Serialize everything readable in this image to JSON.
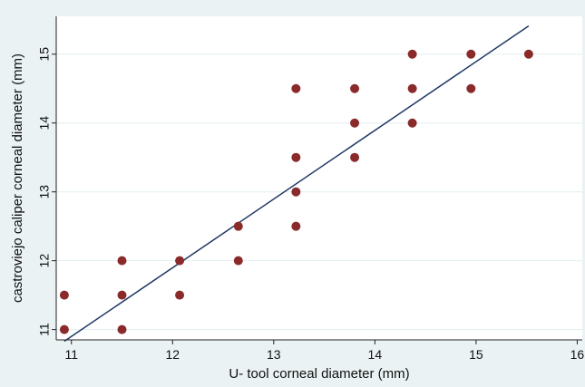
{
  "chart_data": {
    "type": "scatter",
    "title": "",
    "xlabel": "U- tool corneal diameter (mm)",
    "ylabel": "castroviejo caliper corneal diameter (mm)",
    "xlim": [
      10.85,
      16.05
    ],
    "ylim": [
      10.85,
      15.55
    ],
    "xticks": [
      11,
      12,
      13,
      14,
      15,
      16
    ],
    "yticks": [
      11,
      12,
      13,
      14,
      15
    ],
    "grid": "horizontal",
    "legend": "none",
    "marker_color": "#8b2a2a",
    "line_color": "#1f3864",
    "plot_background": "#ffffff",
    "outer_background": "#eaf2f3",
    "grid_color": "#e3eef0",
    "points": [
      {
        "x": 10.93,
        "y": 11.5
      },
      {
        "x": 10.93,
        "y": 11.0
      },
      {
        "x": 11.5,
        "y": 12.0
      },
      {
        "x": 11.5,
        "y": 11.5
      },
      {
        "x": 11.5,
        "y": 11.0
      },
      {
        "x": 12.07,
        "y": 12.0
      },
      {
        "x": 12.07,
        "y": 11.5
      },
      {
        "x": 12.65,
        "y": 12.5
      },
      {
        "x": 12.65,
        "y": 12.0
      },
      {
        "x": 13.22,
        "y": 14.5
      },
      {
        "x": 13.22,
        "y": 13.5
      },
      {
        "x": 13.22,
        "y": 13.0
      },
      {
        "x": 13.22,
        "y": 12.5
      },
      {
        "x": 13.8,
        "y": 14.5
      },
      {
        "x": 13.8,
        "y": 14.0
      },
      {
        "x": 13.8,
        "y": 13.5
      },
      {
        "x": 14.37,
        "y": 15.0
      },
      {
        "x": 14.37,
        "y": 14.5
      },
      {
        "x": 14.37,
        "y": 14.0
      },
      {
        "x": 14.95,
        "y": 15.0
      },
      {
        "x": 14.95,
        "y": 14.5
      },
      {
        "x": 15.52,
        "y": 15.0
      }
    ],
    "fit_line": {
      "x": [
        10.93,
        15.52
      ],
      "y": [
        10.83,
        15.41
      ]
    }
  }
}
